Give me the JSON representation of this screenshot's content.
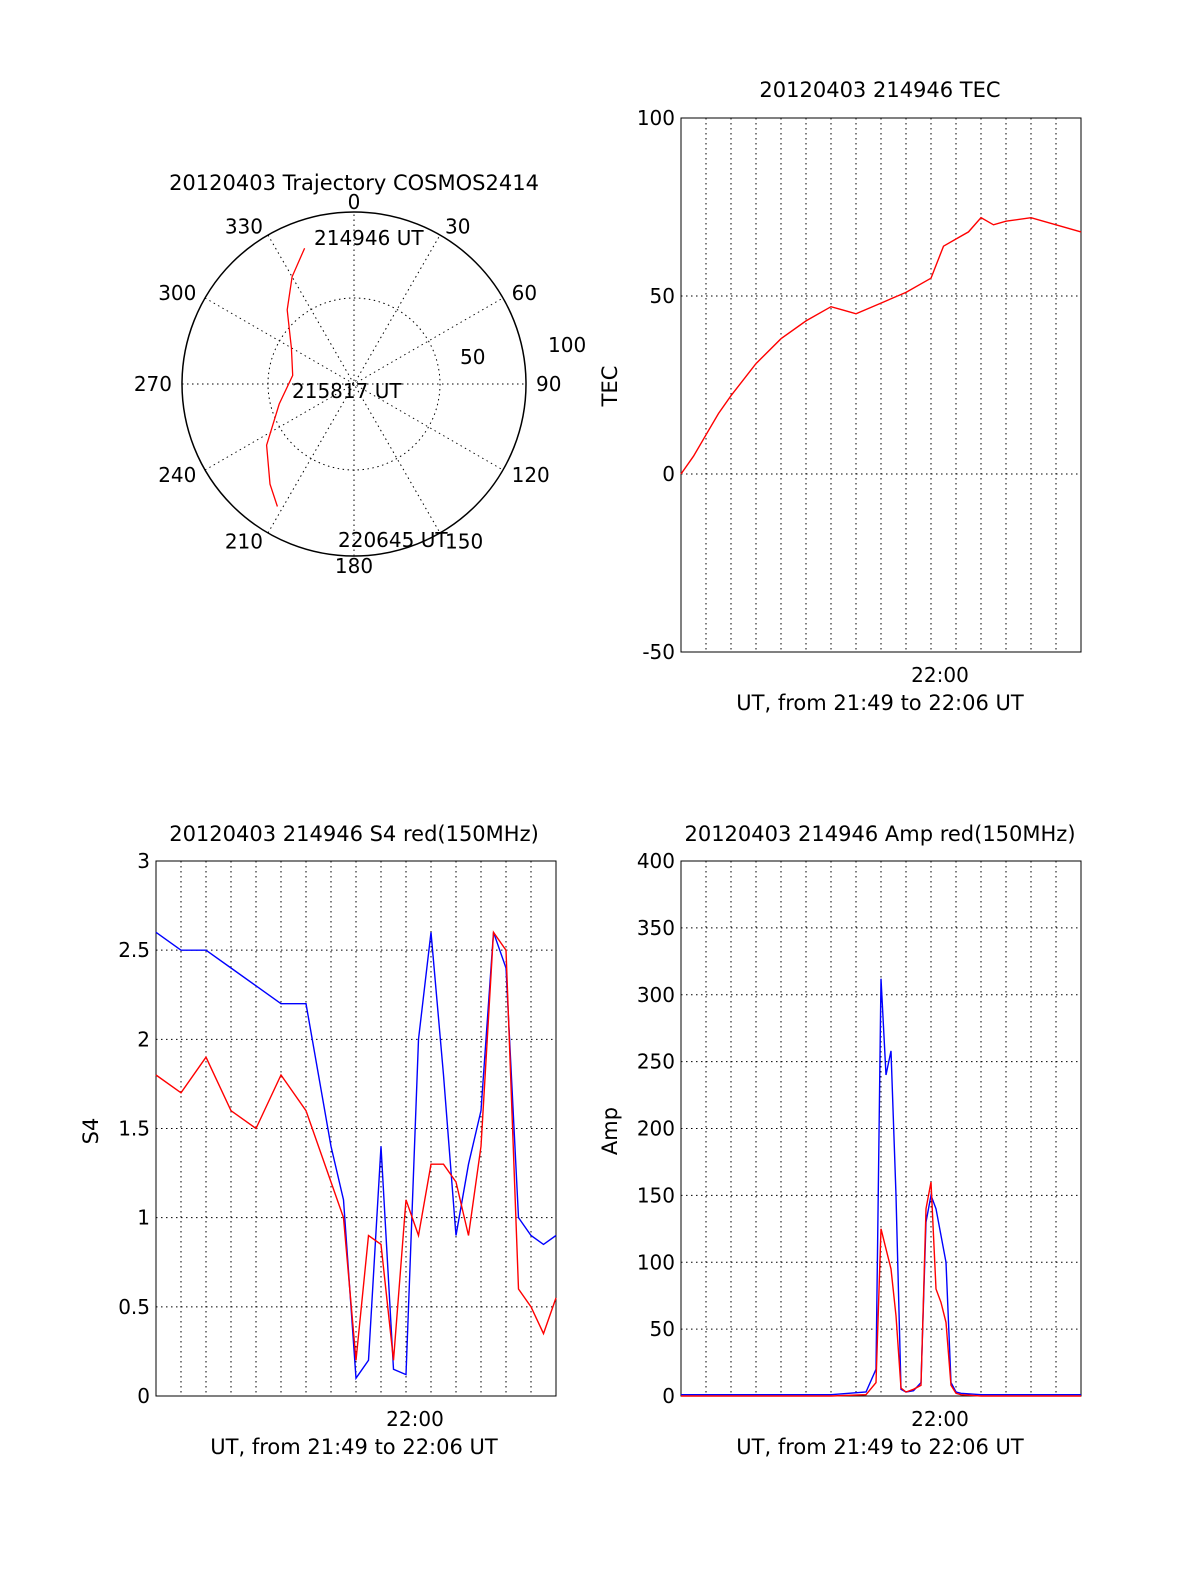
{
  "colors": {
    "red": "#ff0000",
    "blue": "#0000ff",
    "axis": "#000000"
  },
  "chart_data": [
    {
      "type": "polar",
      "title": "20120403 Trajectory COSMOS2414",
      "angle_labels": [
        "0",
        "30",
        "60",
        "90",
        "120",
        "150",
        "180",
        "210",
        "240",
        "270",
        "300",
        "330"
      ],
      "radius_labels": [
        "50",
        "100"
      ],
      "radius_max": 100,
      "series": [
        {
          "color": "red",
          "points": [
            [
              340,
              84
            ],
            [
              330,
              72
            ],
            [
              318,
              58
            ],
            [
              300,
              42
            ],
            [
              278,
              36
            ],
            [
              255,
              45
            ],
            [
              235,
              62
            ],
            [
              220,
              76
            ],
            [
              212,
              84
            ]
          ]
        }
      ],
      "annotations": [
        "214946 UT",
        "215817 UT",
        "220645 UT"
      ]
    },
    {
      "type": "line",
      "title": "20120403 214946 TEC",
      "ylabel": "TEC",
      "xlabel": "UT, from 21:49 to 22:06 UT",
      "x_tick_label": "22:00",
      "ylim": [
        -50,
        100
      ],
      "y_ticks": [
        "100",
        "50",
        "0",
        "-50"
      ],
      "series": [
        {
          "color": "red",
          "x": [
            0,
            0.5,
            1,
            1.5,
            2,
            3,
            4,
            5,
            6,
            6.5,
            7,
            8,
            9,
            10,
            10.5,
            11,
            11.5,
            12,
            12.5,
            13,
            14,
            15,
            16
          ],
          "values": [
            0,
            5,
            11,
            17,
            22,
            31,
            38,
            43,
            47,
            46,
            45,
            48,
            51,
            55,
            64,
            66,
            68,
            72,
            70,
            71,
            72,
            70,
            68
          ]
        }
      ]
    },
    {
      "type": "line",
      "title": "20120403 214946 S4 red(150MHz)",
      "ylabel": "S4",
      "xlabel": "UT, from 21:49 to 22:06 UT",
      "x_tick_label": "22:00",
      "ylim": [
        0,
        3
      ],
      "y_ticks": [
        "3",
        "2.5",
        "2",
        "1.5",
        "1",
        "0.5",
        "0"
      ],
      "series": [
        {
          "color": "blue",
          "x": [
            0,
            1,
            2,
            3,
            4,
            5,
            6,
            7,
            7.5,
            8,
            8.5,
            9,
            9.5,
            10,
            10.5,
            11,
            11.5,
            12,
            12.5,
            13,
            13.5,
            14,
            14.5,
            15,
            15.5,
            16
          ],
          "values": [
            2.6,
            2.5,
            2.5,
            2.4,
            2.3,
            2.2,
            2.2,
            1.4,
            1.1,
            0.1,
            0.2,
            1.4,
            0.15,
            0.12,
            2.0,
            2.6,
            1.8,
            0.9,
            1.3,
            1.6,
            2.6,
            2.4,
            1.0,
            0.9,
            0.85,
            0.9
          ]
        },
        {
          "color": "red",
          "x": [
            0,
            1,
            2,
            3,
            4,
            5,
            6,
            7,
            7.5,
            8,
            8.5,
            9,
            9.5,
            10,
            10.5,
            11,
            11.5,
            12,
            12.5,
            13,
            13.5,
            14,
            14.5,
            15,
            15.5,
            16
          ],
          "values": [
            1.8,
            1.7,
            1.9,
            1.6,
            1.5,
            1.8,
            1.6,
            1.2,
            1.0,
            0.2,
            0.9,
            0.85,
            0.2,
            1.1,
            0.9,
            1.3,
            1.3,
            1.2,
            0.9,
            1.4,
            2.6,
            2.5,
            0.6,
            0.5,
            0.35,
            0.55
          ]
        }
      ]
    },
    {
      "type": "line",
      "title": "20120403 214946 Amp red(150MHz)",
      "ylabel": "Amp",
      "xlabel": "UT, from 21:49 to 22:06 UT",
      "x_tick_label": "22:00",
      "ylim": [
        0,
        400
      ],
      "y_ticks": [
        "400",
        "350",
        "300",
        "250",
        "200",
        "150",
        "100",
        "50",
        "0"
      ],
      "series": [
        {
          "color": "blue",
          "x": [
            0,
            6,
            7.4,
            7.8,
            8.0,
            8.2,
            8.4,
            8.6,
            8.8,
            9.0,
            9.3,
            9.6,
            9.8,
            10.0,
            10.2,
            10.4,
            10.6,
            10.8,
            11.0,
            11.2,
            12,
            16
          ],
          "values": [
            1,
            1,
            3,
            20,
            312,
            240,
            258,
            150,
            5,
            3,
            4,
            10,
            130,
            150,
            140,
            120,
            100,
            10,
            3,
            2,
            1,
            1
          ]
        },
        {
          "color": "red",
          "x": [
            0,
            6,
            7.4,
            7.8,
            8.0,
            8.2,
            8.4,
            8.6,
            8.8,
            9.0,
            9.3,
            9.6,
            9.8,
            10.0,
            10.2,
            10.4,
            10.6,
            10.8,
            11.0,
            11.2,
            12,
            16
          ],
          "values": [
            0,
            0,
            1,
            10,
            125,
            110,
            95,
            60,
            6,
            3,
            5,
            8,
            140,
            160,
            80,
            70,
            55,
            8,
            2,
            1,
            0,
            0
          ]
        }
      ]
    }
  ]
}
